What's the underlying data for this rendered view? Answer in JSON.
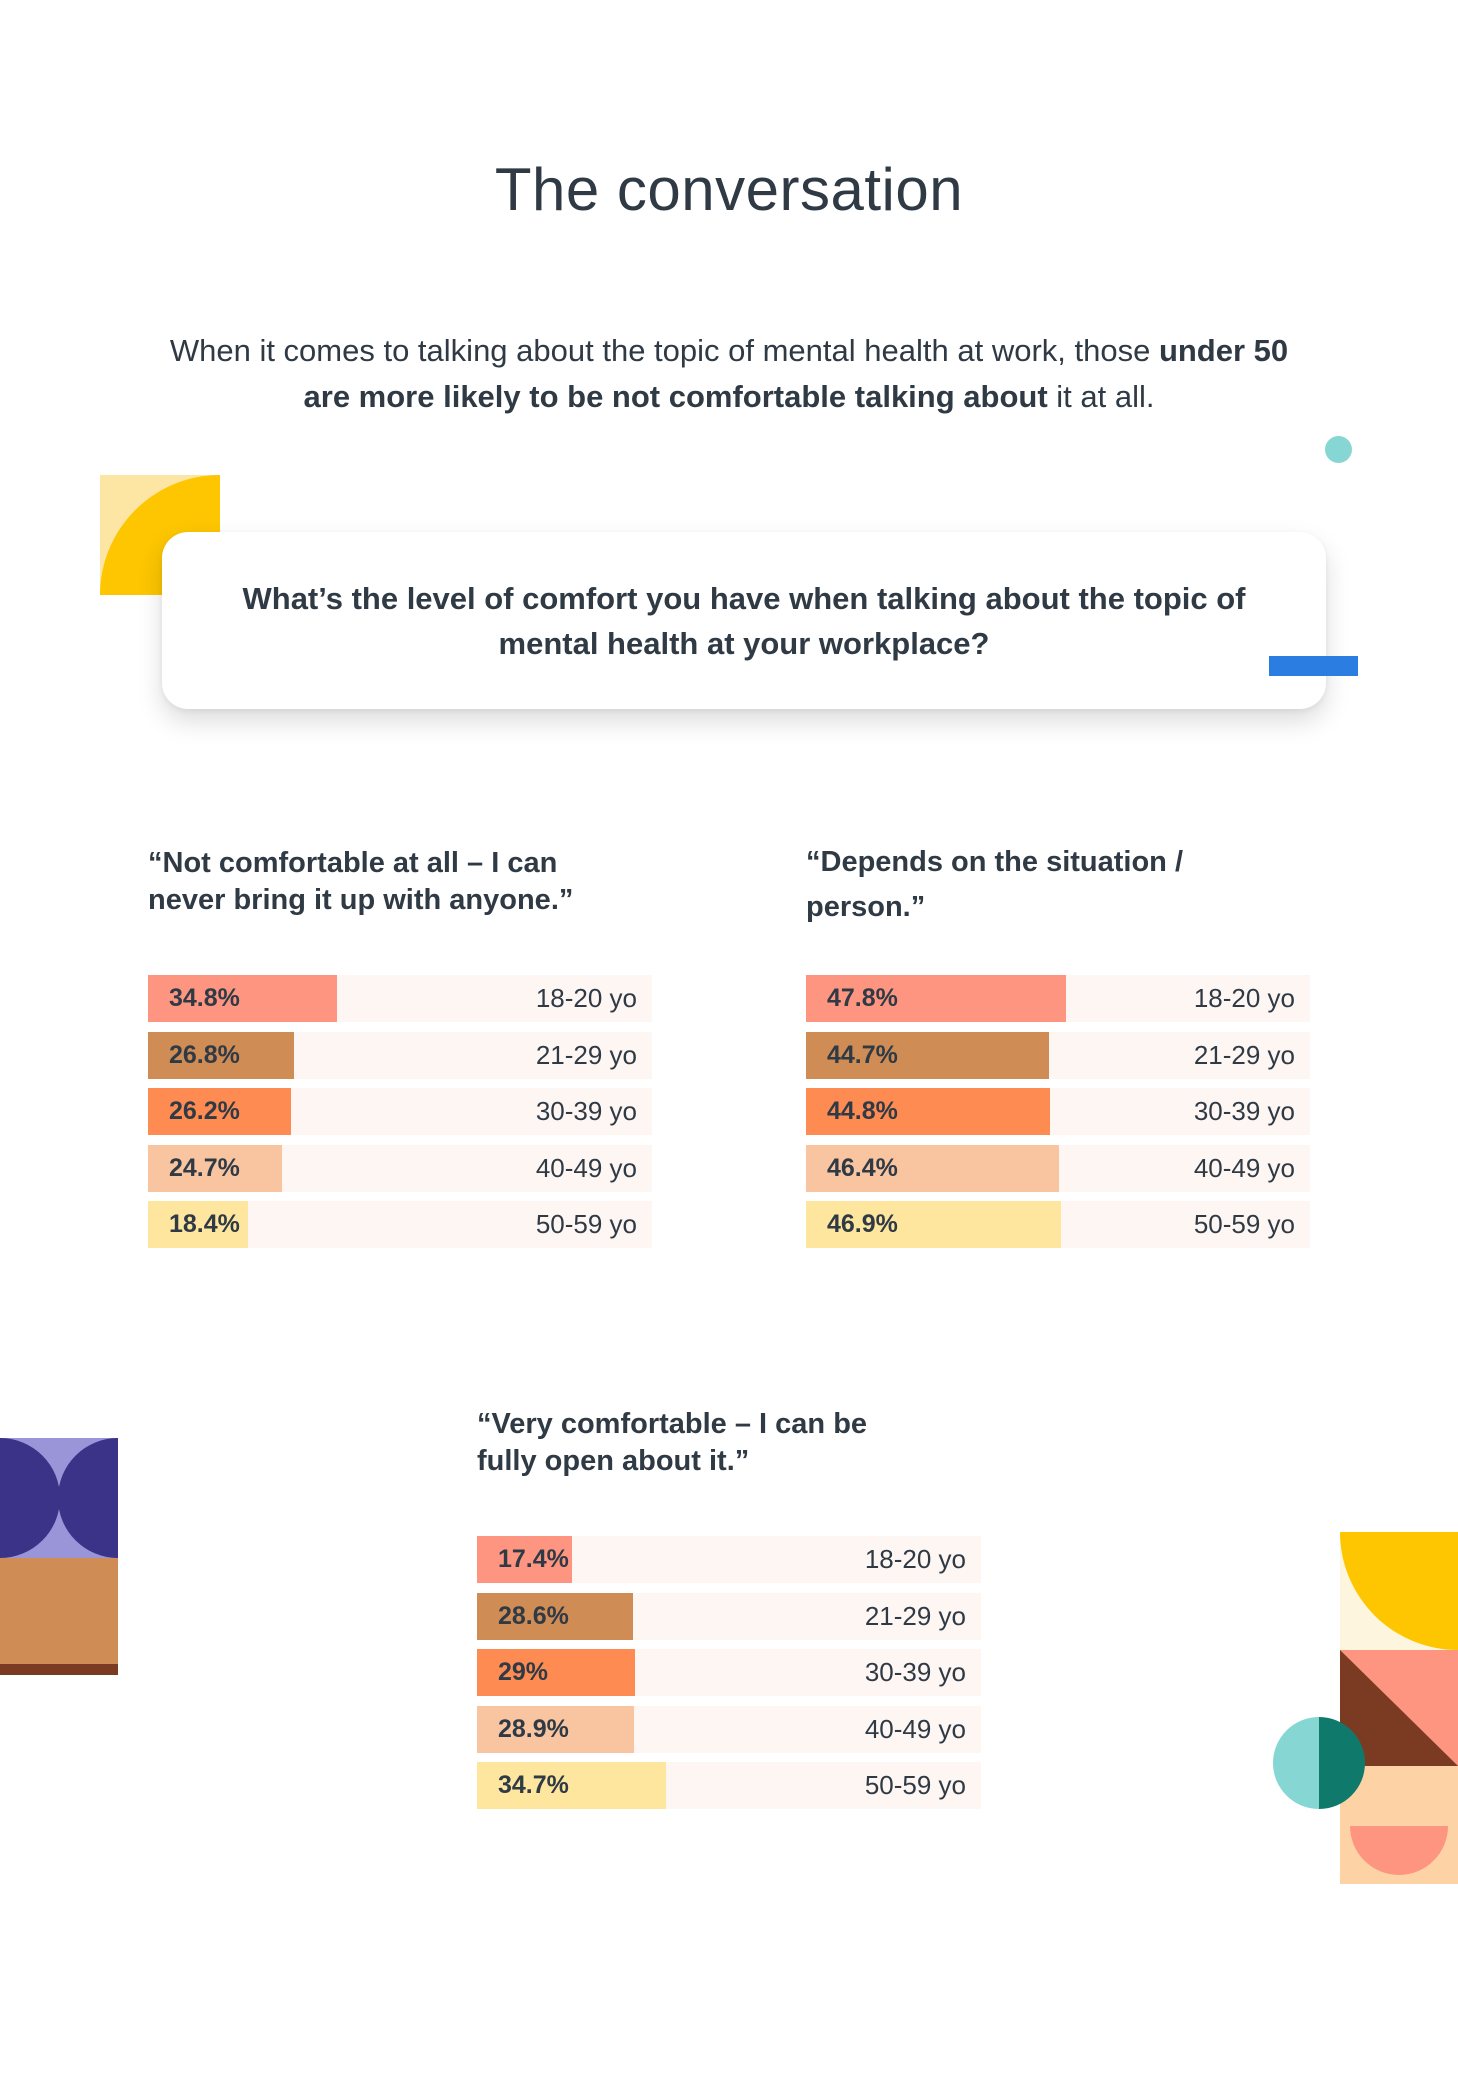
{
  "title": "The conversation",
  "intro": {
    "part1": "When it comes to talking about the topic of mental health at work, those ",
    "bold": "under 50 are more likely to be not comfortable talking about",
    "part2": " it at all."
  },
  "question": "What’s the level of comfort you have when talking about the topic of mental health at your workplace?",
  "colors": {
    "18-20": "#fd9580",
    "21-29": "#d08c55",
    "30-39": "#fe8c52",
    "40-49": "#f9c5a1",
    "50-59": "#fee69e",
    "row_bg": "#fdf6f2",
    "text": "#2f3a45",
    "accent_blue": "#2b7de1",
    "accent_teal": "#86d6d3",
    "accent_yellow": "#fdc600"
  },
  "chart_data": [
    {
      "type": "bar",
      "title": "“Not comfortable at all – I can never bring it up with anyone.”",
      "categories": [
        "18-20 yo",
        "21-29 yo",
        "30-39 yo",
        "40-49 yo",
        "50-59 yo"
      ],
      "labels": [
        "34.8%",
        "26.8%",
        "26.2%",
        "24.7%",
        "18.4%"
      ],
      "values": [
        34.8,
        26.8,
        26.2,
        24.7,
        18.4
      ],
      "xlim": [
        0,
        100
      ]
    },
    {
      "type": "bar",
      "title": "“Depends on the situation / person.”",
      "categories": [
        "18-20 yo",
        "21-29 yo",
        "30-39 yo",
        "40-49 yo",
        "50-59 yo"
      ],
      "labels": [
        "47.8%",
        "44.7%",
        "44.8%",
        "46.4%",
        "46.9%"
      ],
      "values": [
        47.8,
        44.7,
        44.8,
        46.4,
        46.9
      ],
      "xlim": [
        0,
        100
      ]
    },
    {
      "type": "bar",
      "title": "“Very comfortable – I can be fully open about it.”",
      "categories": [
        "18-20 yo",
        "21-29 yo",
        "30-39 yo",
        "40-49 yo",
        "50-59 yo"
      ],
      "labels": [
        "17.4%",
        "28.6%",
        "29%",
        "28.9%",
        "34.7%"
      ],
      "values": [
        17.4,
        28.6,
        29,
        28.9,
        34.7
      ],
      "xlim": [
        0,
        100
      ]
    }
  ]
}
